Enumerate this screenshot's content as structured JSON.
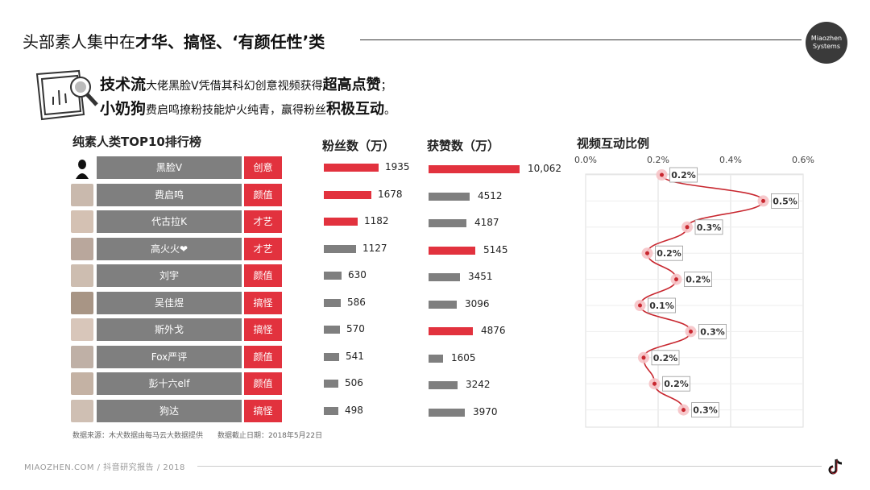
{
  "header": {
    "title_prefix": "头部素人集中在",
    "title_bold": "才华、搞怪、‘有颜任性’类",
    "logo_line1": "Miaozhen",
    "logo_line2": "Systems"
  },
  "highlights": {
    "line1_big": "技术流",
    "line1_text": "大佬黑脸V凭借其科幻创意视频获得",
    "line1_emph": "超高点赞",
    "line1_end": "；",
    "line2_big": "小奶狗",
    "line2_text": "费启鸣撩粉技能炉火纯青，赢得粉丝",
    "line2_emph": "积极互动",
    "line2_end": "。"
  },
  "sections": {
    "ranking_title": "纯素人类TOP10排行榜",
    "fans_title": "粉丝数（万）",
    "likes_title": "获赞数（万）",
    "interaction_title": "视频互动比例"
  },
  "ranking": [
    {
      "name": "黑脸V",
      "tag": "创意",
      "fans": "1935",
      "likes": "10,062",
      "fans_num": 1935,
      "likes_num": 10062,
      "ratio": "0.2%",
      "ratio_num": 0.21
    },
    {
      "name": "费启鸣",
      "tag": "颜值",
      "fans": "1678",
      "likes": "4512",
      "fans_num": 1678,
      "likes_num": 4512,
      "ratio": "0.5%",
      "ratio_num": 0.49
    },
    {
      "name": "代古拉K",
      "tag": "才艺",
      "fans": "1182",
      "likes": "4187",
      "fans_num": 1182,
      "likes_num": 4187,
      "ratio": "0.3%",
      "ratio_num": 0.28
    },
    {
      "name": "高火火❤",
      "tag": "才艺",
      "fans": "1127",
      "likes": "5145",
      "fans_num": 1127,
      "likes_num": 5145,
      "ratio": "0.2%",
      "ratio_num": 0.17
    },
    {
      "name": "刘宇",
      "tag": "颜值",
      "fans": "630",
      "likes": "3451",
      "fans_num": 630,
      "likes_num": 3451,
      "ratio": "0.2%",
      "ratio_num": 0.25
    },
    {
      "name": "吴佳煜",
      "tag": "搞怪",
      "fans": "586",
      "likes": "3096",
      "fans_num": 586,
      "likes_num": 3096,
      "ratio": "0.1%",
      "ratio_num": 0.15
    },
    {
      "name": "斯外戈",
      "tag": "搞怪",
      "fans": "570",
      "likes": "4876",
      "fans_num": 570,
      "likes_num": 4876,
      "ratio": "0.3%",
      "ratio_num": 0.29
    },
    {
      "name": "Fox严评",
      "tag": "颜值",
      "fans": "541",
      "likes": "1605",
      "fans_num": 541,
      "likes_num": 1605,
      "ratio": "0.2%",
      "ratio_num": 0.16
    },
    {
      "name": "彭十六elf",
      "tag": "颜值",
      "fans": "506",
      "likes": "3242",
      "fans_num": 506,
      "likes_num": 3242,
      "ratio": "0.2%",
      "ratio_num": 0.19
    },
    {
      "name": "狗达",
      "tag": "搞怪",
      "fans": "498",
      "likes": "3970",
      "fans_num": 498,
      "likes_num": 3970,
      "ratio": "0.3%",
      "ratio_num": 0.27
    }
  ],
  "interaction_axis": {
    "ticks": [
      "0.0%",
      "0.2%",
      "0.4%",
      "0.6%"
    ],
    "min": 0,
    "max": 0.6
  },
  "footer": {
    "source": "数据来源：木犬数据由每马云大数据提供",
    "date": "数据截止日期：2018年5月22日",
    "site": "MIAOZHEN.COM / 抖音研究报告 / 2018"
  },
  "colors": {
    "accent": "#e2323e",
    "gray": "#7f7f7f"
  },
  "icons": [
    "report-chart-icon",
    "douyin-icon"
  ]
}
